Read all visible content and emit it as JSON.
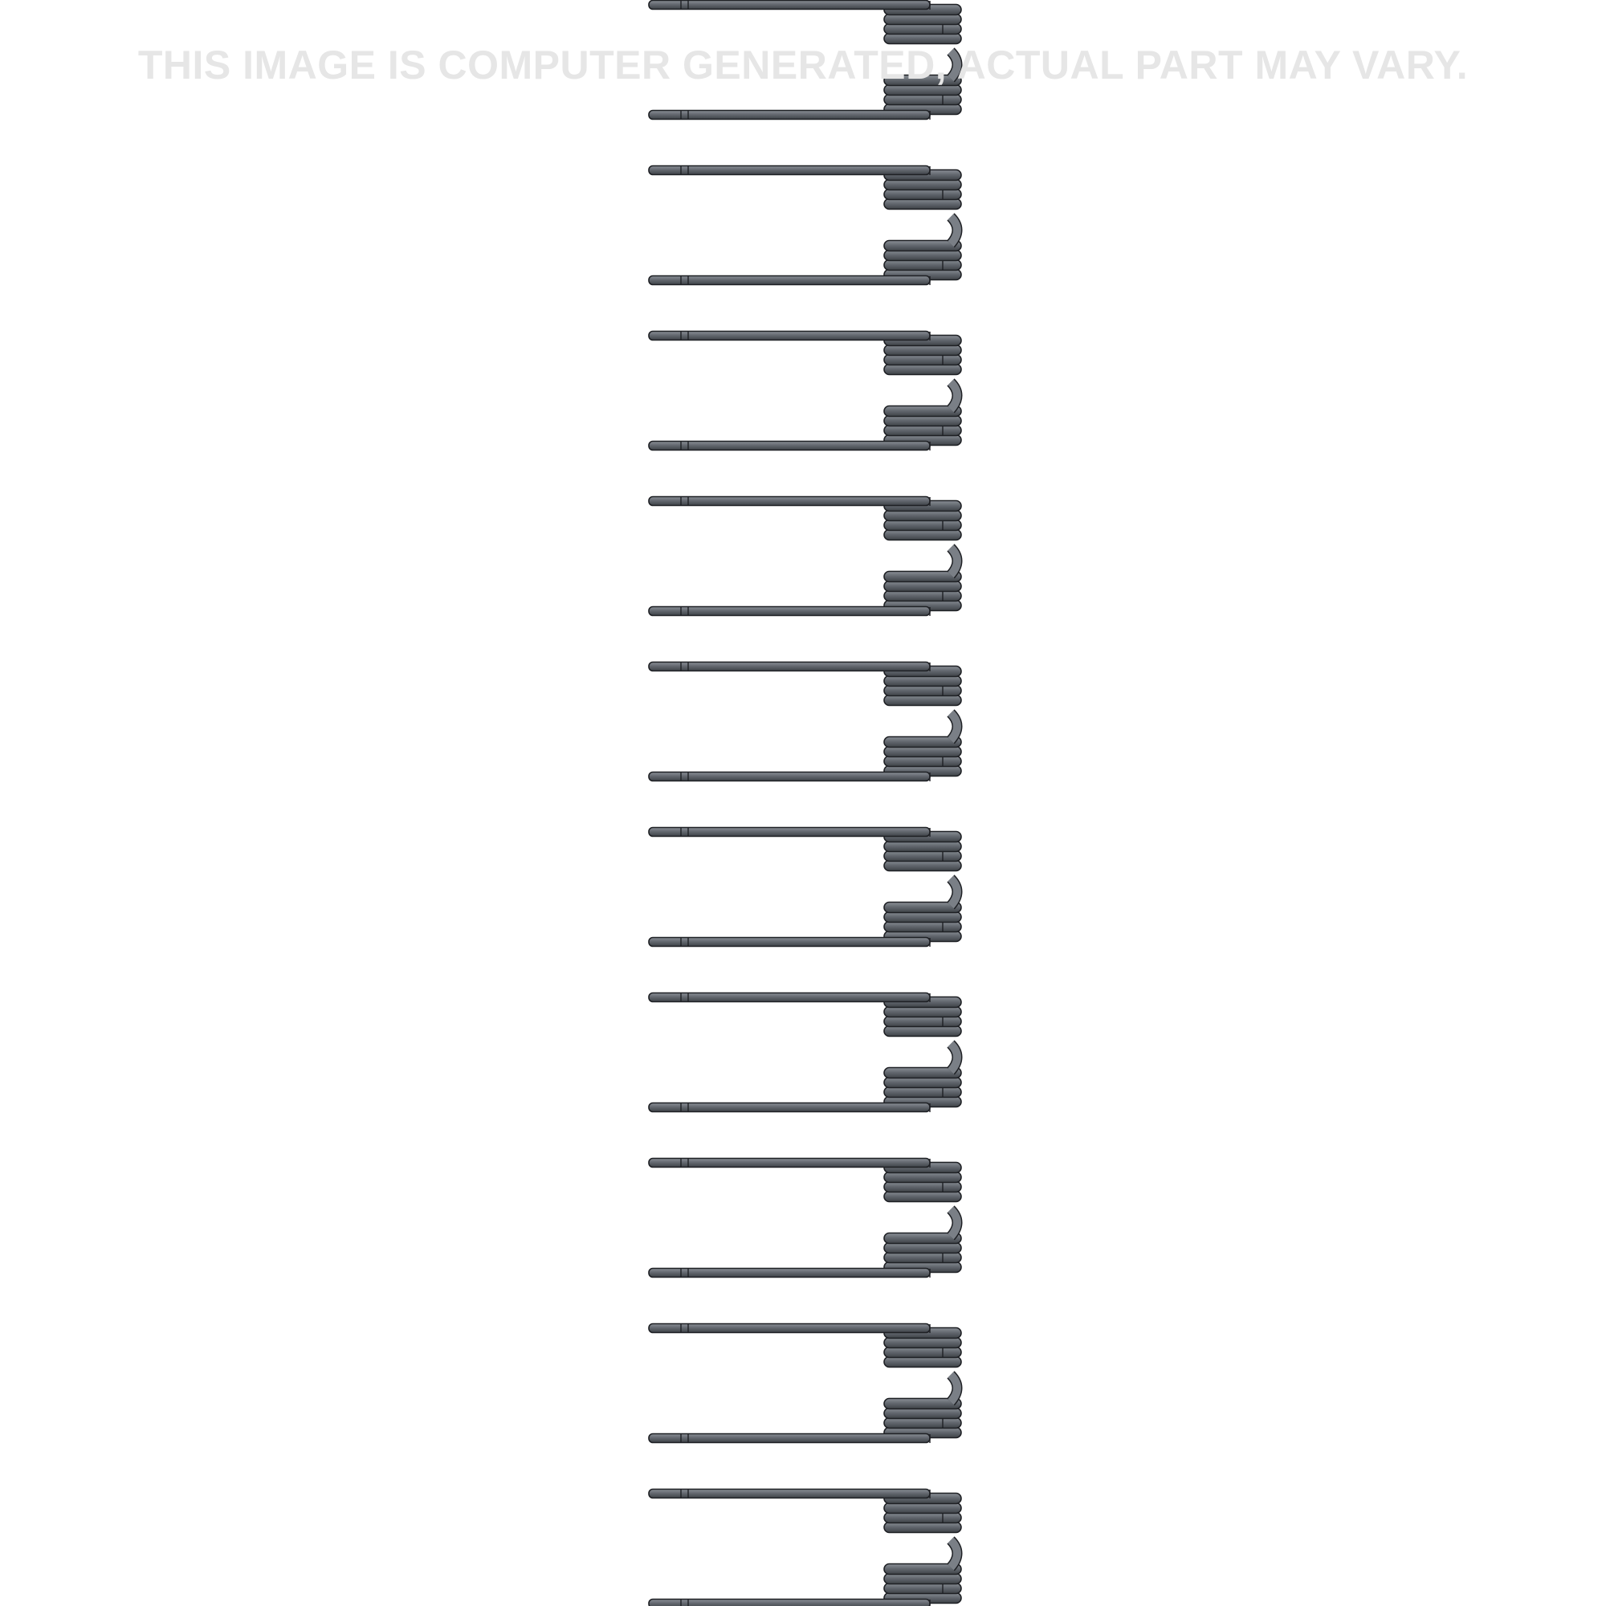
{
  "watermark": {
    "text": "THIS IMAGE IS COMPUTER GENERATED, ACTUAL PART MAY VARY.",
    "color": "#e6e6e6"
  },
  "product": {
    "part": "tine springs",
    "count": 10,
    "colors": {
      "steel": "#646970",
      "highlight": "#8b9097",
      "outline": "#1e2024"
    }
  }
}
